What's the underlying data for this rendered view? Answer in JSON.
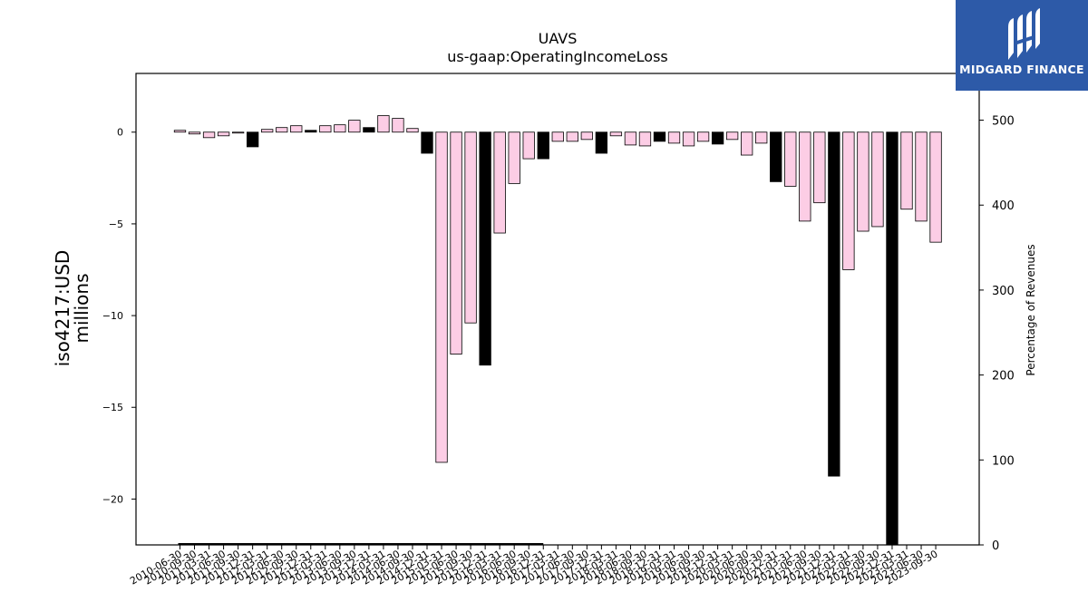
{
  "title": "UAVS",
  "subtitle": "us-gaap:OperatingIncomeLoss",
  "logo": {
    "brand": "MIDGARD FINANCE",
    "bg_color": "#2d5aa8",
    "mark_icon": "midgard-logo-mark-icon"
  },
  "chart_data": {
    "type": "bar",
    "title": "UAVS",
    "subtitle": "us-gaap:OperatingIncomeLoss",
    "ylabel": "iso4217:USD\nmillions",
    "ylabel_lines": [
      "iso4217:USD",
      "millions"
    ],
    "y2label": "Percentage of Revenues",
    "ylim": [
      -22.5,
      3.2
    ],
    "y2lim": [
      0,
      555
    ],
    "yticks": [
      0,
      -5,
      -10,
      -15,
      -20
    ],
    "y2ticks": [
      0,
      100,
      200,
      300,
      400,
      500
    ],
    "colors": {
      "quarter": "#fccde5",
      "annual": "#000000",
      "edge": "#000000"
    },
    "categories": [
      "2010-06-30",
      "2010-09-30",
      "2011-03-31",
      "2011-06-30",
      "2011-09-30",
      "2011-12-31",
      "2012-03-31",
      "2012-06-30",
      "2012-09-30",
      "2012-12-31",
      "2013-03-31",
      "2013-06-30",
      "2013-09-30",
      "2013-12-31",
      "2014-03-31",
      "2014-06-30",
      "2014-09-30",
      "2014-12-31",
      "2015-03-31",
      "2015-06-30",
      "2015-09-30",
      "2015-12-31",
      "2016-03-31",
      "2016-06-30",
      "2016-09-30",
      "2016-12-31",
      "2017-03-31",
      "2017-06-30",
      "2017-09-30",
      "2017-12-31",
      "2018-03-31",
      "2018-06-30",
      "2018-09-30",
      "2018-12-31",
      "2019-03-31",
      "2019-06-30",
      "2019-09-30",
      "2019-12-31",
      "2020-03-31",
      "2020-06-30",
      "2020-09-30",
      "2020-12-31",
      "2021-03-31",
      "2021-06-30",
      "2021-09-30",
      "2021-12-31",
      "2022-03-31",
      "2022-06-30",
      "2022-09-30",
      "2022-12-31",
      "2023-03-31",
      "2023-06-30",
      "2023-09-30"
    ],
    "values": [
      0.1,
      -0.1,
      -0.3,
      -0.2,
      -0.05,
      -0.8,
      0.15,
      0.25,
      0.35,
      0.1,
      0.35,
      0.4,
      0.65,
      0.25,
      0.9,
      0.75,
      0.2,
      -1.15,
      -18.0,
      -12.1,
      -10.4,
      -12.7,
      -5.5,
      -2.8,
      -1.45,
      -1.45,
      -0.5,
      -0.5,
      -0.4,
      -1.15,
      -0.2,
      -0.7,
      -0.75,
      -0.5,
      -0.6,
      -0.75,
      -0.5,
      -0.65,
      -0.4,
      -1.25,
      -0.6,
      -2.7,
      -2.95,
      -4.85,
      -3.85,
      -18.75,
      -7.5,
      -5.4,
      -5.15,
      -22.5,
      -4.2,
      -4.85,
      -6.0
    ],
    "is_annual": [
      false,
      false,
      false,
      false,
      false,
      true,
      false,
      false,
      false,
      true,
      false,
      false,
      false,
      true,
      false,
      false,
      false,
      true,
      false,
      false,
      false,
      true,
      false,
      false,
      false,
      true,
      false,
      false,
      false,
      true,
      false,
      false,
      false,
      true,
      false,
      false,
      false,
      true,
      false,
      false,
      false,
      true,
      false,
      false,
      false,
      true,
      false,
      false,
      false,
      true,
      false,
      false,
      false
    ],
    "revenue_pct_baseline": 0
  }
}
